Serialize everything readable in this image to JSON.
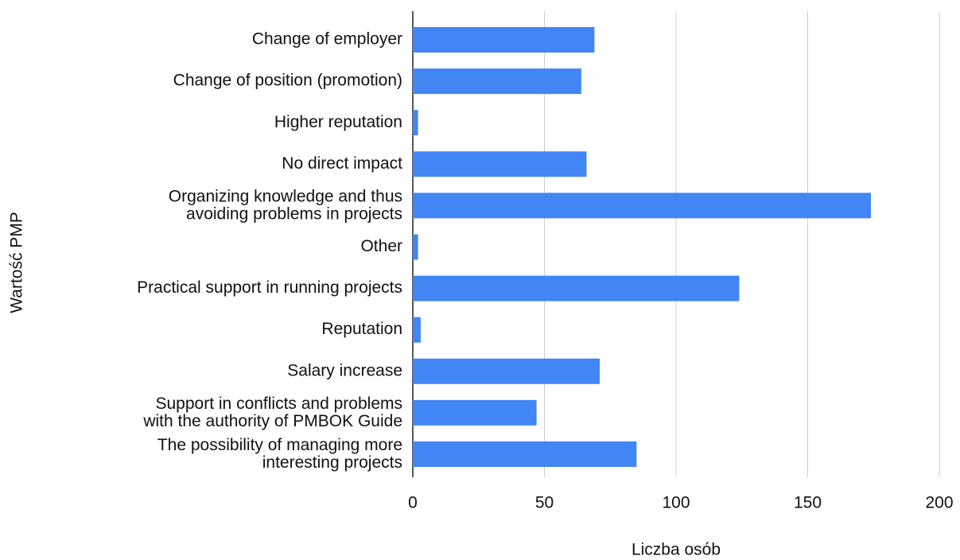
{
  "chart_data": {
    "type": "bar",
    "orientation": "horizontal",
    "xlabel": "Liczba osób",
    "ylabel": "Wartość PMP",
    "categories": [
      "Change of employer",
      "Change of position (promotion)",
      "Higher reputation",
      "No direct impact",
      "Organizing knowledge and thus\navoiding problems in projects",
      "Other",
      "Practical support in running projects",
      "Reputation",
      "Salary increase",
      "Support in conflicts and problems\nwith the authority of PMBOK Guide",
      "The possibility of managing more\ninteresting projects"
    ],
    "values": [
      69,
      64,
      2,
      66,
      174,
      2,
      124,
      3,
      71,
      47,
      85
    ],
    "color": "#4285f4",
    "xlim": [
      0,
      200
    ],
    "xticks": [
      0,
      50,
      100,
      150,
      200
    ],
    "grid": true
  }
}
